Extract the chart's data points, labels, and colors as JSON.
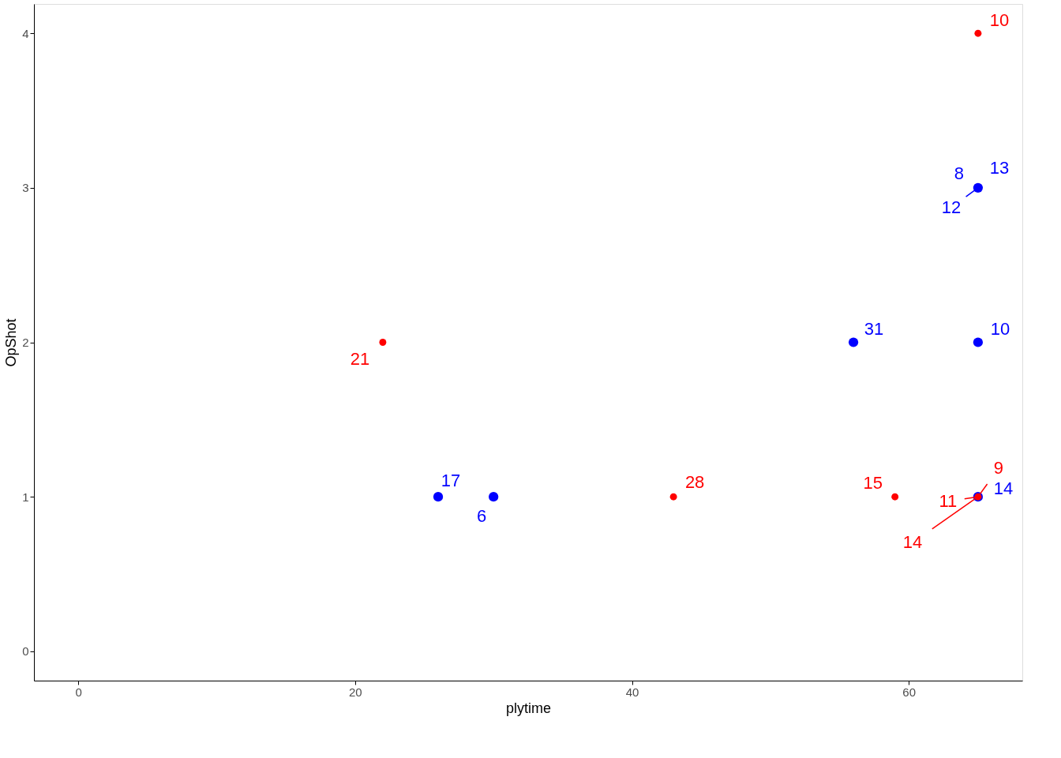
{
  "chart_data": {
    "type": "scatter",
    "xlabel": "plytime",
    "ylabel": "OpShot",
    "xlim": [
      -3.2,
      68.2
    ],
    "ylim": [
      -0.19,
      4.19
    ],
    "xticks": [
      0,
      20,
      40,
      60
    ],
    "yticks": [
      0,
      1,
      2,
      3,
      4
    ],
    "grid": false,
    "marker": "circle",
    "series": [
      {
        "color": "#ff0000",
        "x": [
          22,
          43,
          59,
          65,
          65
        ],
        "values": [
          2,
          1,
          1,
          4,
          1
        ]
      },
      {
        "color": "#0000ff",
        "x": [
          26,
          30,
          56,
          65,
          65,
          65
        ],
        "values": [
          1,
          1,
          2,
          2,
          3,
          1
        ]
      }
    ],
    "annotations": [
      {
        "text": "21",
        "x": 22,
        "y": 2
      },
      {
        "text": "28",
        "x": 43,
        "y": 1
      },
      {
        "text": "15",
        "x": 59,
        "y": 1
      },
      {
        "text": "10",
        "x": 65,
        "y": 4
      },
      {
        "text": "9",
        "x": 65,
        "y": 1
      },
      {
        "text": "11",
        "x": 65,
        "y": 1
      },
      {
        "text": "14",
        "x": 65,
        "y": 1
      },
      {
        "text": "17",
        "x": 26,
        "y": 1
      },
      {
        "text": "6",
        "x": 30,
        "y": 1
      },
      {
        "text": "31",
        "x": 56,
        "y": 2
      },
      {
        "text": "10",
        "x": 65,
        "y": 2
      },
      {
        "text": "13",
        "x": 65,
        "y": 3
      },
      {
        "text": "8",
        "x": 65,
        "y": 3
      },
      {
        "text": "12",
        "x": 65,
        "y": 3
      },
      {
        "text": "14",
        "x": 65,
        "y": 1
      }
    ]
  }
}
